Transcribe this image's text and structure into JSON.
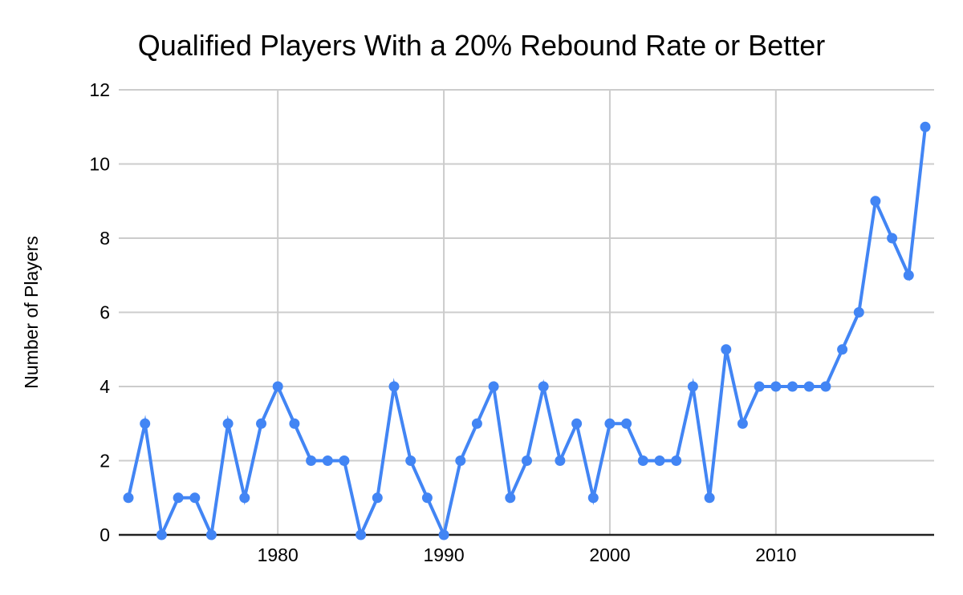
{
  "chart_data": {
    "type": "line",
    "title": "Qualified Players With a 20% Rebound Rate or Better",
    "xlabel": "",
    "ylabel": "Number of Players",
    "x": [
      1971,
      1972,
      1973,
      1974,
      1975,
      1976,
      1977,
      1978,
      1979,
      1980,
      1981,
      1982,
      1983,
      1984,
      1985,
      1986,
      1987,
      1988,
      1989,
      1990,
      1991,
      1992,
      1993,
      1994,
      1995,
      1996,
      1997,
      1998,
      1999,
      2000,
      2001,
      2002,
      2003,
      2004,
      2005,
      2006,
      2007,
      2008,
      2009,
      2010,
      2011,
      2012,
      2013,
      2014,
      2015,
      2016,
      2017,
      2018,
      2019
    ],
    "values": [
      1,
      3,
      0,
      1,
      1,
      0,
      3,
      1,
      3,
      4,
      3,
      2,
      2,
      2,
      0,
      1,
      4,
      2,
      1,
      0,
      2,
      3,
      4,
      1,
      2,
      4,
      2,
      3,
      1,
      3,
      3,
      2,
      2,
      2,
      4,
      1,
      5,
      3,
      4,
      4,
      4,
      4,
      4,
      5,
      6,
      9,
      8,
      7,
      11
    ],
    "x_tick_labels": [
      "1980",
      "1990",
      "2000",
      "2010"
    ],
    "x_tick_years": [
      1980,
      1990,
      2000,
      2010
    ],
    "y_tick_labels": [
      "0",
      "2",
      "4",
      "6",
      "8",
      "10",
      "12"
    ],
    "y_tick_values": [
      0,
      2,
      4,
      6,
      8,
      10,
      12
    ],
    "ylim": [
      0,
      12
    ],
    "grid": "on",
    "legend": "none",
    "colors": {
      "line": "#4285f4",
      "marker": "#4285f4",
      "grid": "#cccccc",
      "axis_baseline": "#212121",
      "text": "#000000",
      "background": "#ffffff"
    }
  }
}
